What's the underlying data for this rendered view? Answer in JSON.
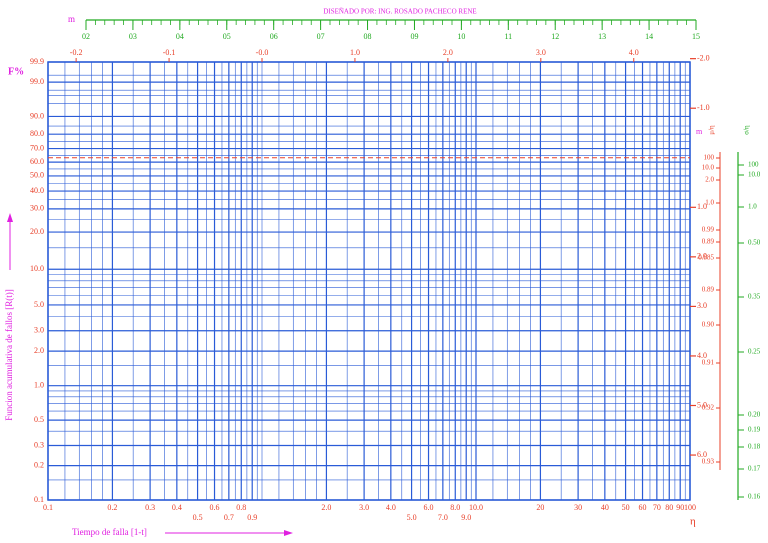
{
  "chart_data": {
    "type": "weibull",
    "title": "DISEÑADO POR: ING. ROSADO PACHECO RENE",
    "y_unit_label": "F%",
    "ylabel": "Funcion acumulativa de fallos [R(t)]",
    "xlabel": "Tiempo de falla [1-t]",
    "x_axis_symbol": "η",
    "m_axis_symbol": "m",
    "right_axis_symbol": "m",
    "mu_eta_title": "μ/η",
    "sigma_eta_title": "σ/η",
    "xlim": [
      0.1,
      100
    ],
    "ylim": [
      0.1,
      99.9
    ],
    "log_x": true,
    "grid": true,
    "grid_color": "#2a5bd7",
    "reference_line": 63.2,
    "reference_color": "#e8402a",
    "xticks": [
      0.1,
      0.2,
      0.3,
      0.4,
      0.6,
      0.8,
      {
        "value": 2,
        "label": "2.0"
      },
      {
        "value": 3,
        "label": "3.0"
      },
      {
        "value": 4,
        "label": "4.0"
      },
      {
        "value": 6,
        "label": "6.0"
      },
      {
        "value": 8,
        "label": "8.0"
      },
      {
        "value": 10,
        "label": "10.0"
      },
      20,
      30,
      40,
      50,
      60,
      70,
      80,
      90,
      100
    ],
    "xticks_second_row": [
      0.5,
      0.7,
      0.9,
      {
        "value": 5,
        "label": "5.0"
      },
      {
        "value": 7,
        "label": "7.0"
      },
      {
        "value": 9,
        "label": "9.0"
      }
    ],
    "xminor": [
      0.12,
      0.14,
      0.16,
      0.18,
      0.25,
      0.35,
      0.45,
      0.55,
      0.65,
      0.75,
      0.85,
      0.95,
      1,
      1.2,
      1.4,
      1.6,
      1.8,
      2.5,
      3.5,
      4.5,
      5.5,
      6.5,
      7.5,
      8.5,
      9.5,
      12,
      14,
      16,
      18,
      25,
      35,
      45,
      55,
      65,
      75,
      85,
      95
    ],
    "yticks": [
      99.9,
      {
        "value": 99,
        "label": "99.0"
      },
      {
        "value": 90,
        "label": "90.0"
      },
      {
        "value": 80,
        "label": "80.0"
      },
      {
        "value": 70,
        "label": "70.0"
      },
      {
        "value": 60,
        "label": "60.0"
      },
      {
        "value": 50,
        "label": "50.0"
      },
      {
        "value": 40,
        "label": "40.0"
      },
      {
        "value": 30,
        "label": "30.0"
      },
      {
        "value": 20,
        "label": "20.0"
      },
      {
        "value": 10,
        "label": "10.0"
      },
      {
        "value": 5,
        "label": "5.0"
      },
      {
        "value": 3,
        "label": "3.0"
      },
      {
        "value": 2,
        "label": "2.0"
      },
      {
        "value": 1,
        "label": "1.0"
      },
      0.5,
      0.3,
      0.2,
      0.1
    ],
    "yminor": [
      0.15,
      0.4,
      0.6,
      0.7,
      0.8,
      0.9,
      1.5,
      4,
      6,
      7,
      8,
      9,
      15,
      25,
      35,
      45,
      55,
      65,
      75,
      85,
      95,
      97,
      98,
      99.5
    ],
    "mlim": [
      0.2,
      1.5
    ],
    "m_minor_step": 0.02,
    "mticks": [
      {
        "value": 0.2,
        "label": "02"
      },
      {
        "value": 0.3,
        "label": "03"
      },
      {
        "value": 0.4,
        "label": "04"
      },
      {
        "value": 0.5,
        "label": "05"
      },
      {
        "value": 0.6,
        "label": "06"
      },
      {
        "value": 0.7,
        "label": "07"
      },
      {
        "value": 0.8,
        "label": "08"
      },
      {
        "value": 0.9,
        "label": "09"
      },
      {
        "value": 1.0,
        "label": "10"
      },
      {
        "value": 1.1,
        "label": "11"
      },
      {
        "value": 1.2,
        "label": "12"
      },
      {
        "value": 1.3,
        "label": "13"
      },
      {
        "value": 1.4,
        "label": "14"
      },
      {
        "value": 1.5,
        "label": "15"
      }
    ],
    "ln_ticks": [
      {
        "value": -2,
        "label": "-0.2"
      },
      {
        "value": -1,
        "label": "-0.1"
      },
      {
        "value": 0,
        "label": "-0.0"
      },
      {
        "value": 1,
        "label": "1.0"
      },
      {
        "value": 2,
        "label": "2.0"
      },
      {
        "value": 3,
        "label": "3.0"
      },
      {
        "value": 4,
        "label": "4.0"
      }
    ],
    "right_ticks": [
      {
        "value": 2,
        "label": "-2.0"
      },
      {
        "value": 1,
        "label": "-1.0"
      },
      {
        "value": -1,
        "label": "1.0"
      },
      {
        "value": -2,
        "label": "2.0"
      },
      {
        "value": -3,
        "label": "3.0"
      },
      {
        "value": -4,
        "label": "4.0"
      },
      {
        "value": -5,
        "label": "5.0"
      },
      {
        "value": -6,
        "label": "6.0"
      }
    ],
    "mu_eta_labels": [
      "100",
      "10.0",
      "2.0",
      "1.0",
      "0.99",
      "0.89",
      "0.885",
      "0.89",
      "0.90",
      "0.91",
      "0.92",
      "0.93"
    ],
    "sigma_eta_labels": [
      "100",
      "10.0",
      "1.0",
      "0.50",
      "0.35",
      "0.25",
      "0.20",
      "0.19",
      "0.18",
      "0.17",
      "0.16"
    ]
  }
}
